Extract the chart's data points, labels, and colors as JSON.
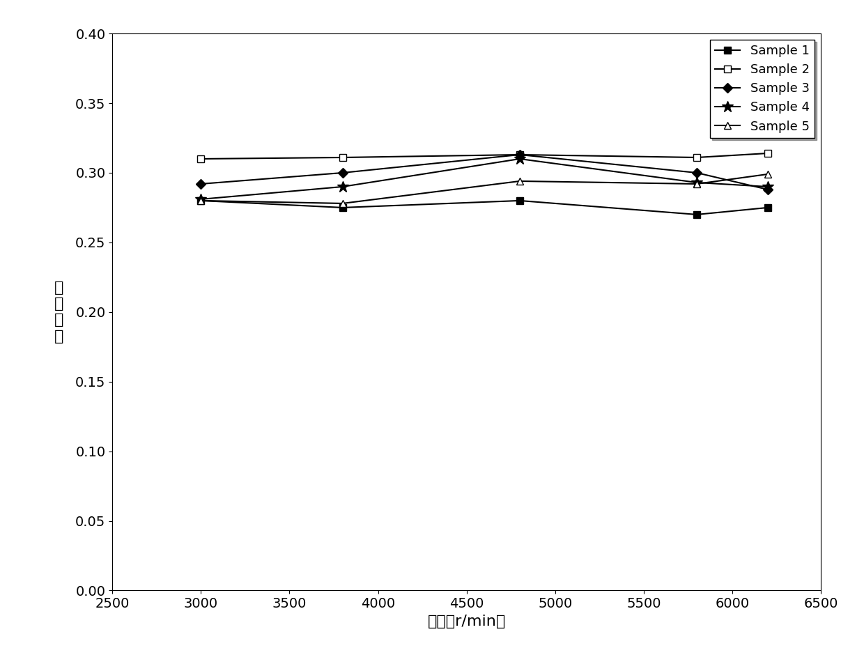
{
  "x_values": [
    3000,
    3800,
    4800,
    5800,
    6200
  ],
  "series": [
    {
      "label": "Sample 1",
      "values": [
        0.28,
        0.275,
        0.28,
        0.27,
        0.275
      ],
      "marker": "s",
      "marker_fill": "black",
      "marker_edge": "black",
      "linestyle": "-",
      "color": "black",
      "markersize": 7
    },
    {
      "label": "Sample 2",
      "values": [
        0.31,
        0.311,
        0.313,
        0.311,
        0.314
      ],
      "marker": "s",
      "marker_fill": "white",
      "marker_edge": "black",
      "linestyle": "-",
      "color": "black",
      "markersize": 7
    },
    {
      "label": "Sample 3",
      "values": [
        0.292,
        0.3,
        0.313,
        0.3,
        0.288
      ],
      "marker": "D",
      "marker_fill": "black",
      "marker_edge": "black",
      "linestyle": "-",
      "color": "black",
      "markersize": 7
    },
    {
      "label": "Sample 4",
      "values": [
        0.281,
        0.29,
        0.31,
        0.293,
        0.29
      ],
      "marker": "*",
      "marker_fill": "black",
      "marker_edge": "black",
      "linestyle": "-",
      "color": "black",
      "markersize": 12
    },
    {
      "label": "Sample 5",
      "values": [
        0.28,
        0.278,
        0.294,
        0.292,
        0.299
      ],
      "marker": "^",
      "marker_fill": "white",
      "marker_edge": "black",
      "linestyle": "-",
      "color": "black",
      "markersize": 7
    }
  ],
  "xlabel": "转速（r/min）",
  "ylabel_chars": [
    "摩",
    "擦",
    "系",
    "数"
  ],
  "xlim": [
    2500,
    6500
  ],
  "ylim": [
    0.0,
    0.4
  ],
  "yticks": [
    0.0,
    0.05,
    0.1,
    0.15,
    0.2,
    0.25,
    0.3,
    0.35,
    0.4
  ],
  "xticks": [
    2500,
    3000,
    3500,
    4000,
    4500,
    5000,
    5500,
    6000,
    6500
  ],
  "legend_loc": "upper right",
  "background_color": "#ffffff",
  "linewidth": 1.5
}
